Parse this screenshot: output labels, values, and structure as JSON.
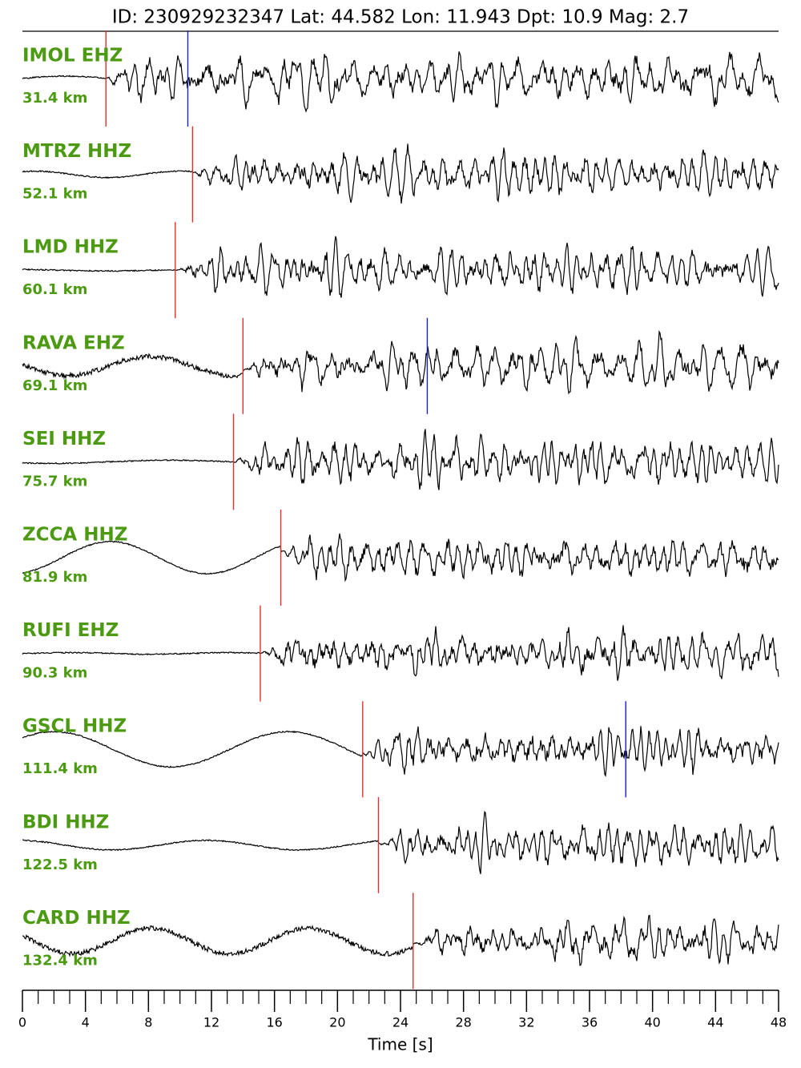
{
  "chart_data": {
    "type": "seismogram",
    "title": "ID: 230929232347 Lat:  44.582 Lon:  11.943 Dpt:    10.9 Mag:   2.7",
    "xlabel": "Time [s]",
    "xlim": [
      0,
      48
    ],
    "xticks": [
      0,
      4,
      8,
      12,
      16,
      20,
      24,
      28,
      32,
      36,
      40,
      44,
      48
    ],
    "label_color": "#4c9a12",
    "stations": [
      {
        "name": "IMOL EHZ",
        "distance": "31.4 km",
        "picks": [
          {
            "time": 5.3,
            "color": "#e03030"
          },
          {
            "time": 10.5,
            "color": "#2020c0"
          }
        ]
      },
      {
        "name": "MTRZ HHZ",
        "distance": "52.1 km",
        "picks": [
          {
            "time": 10.8,
            "color": "#e03030"
          }
        ]
      },
      {
        "name": "LMD HHZ",
        "distance": "60.1 km",
        "picks": [
          {
            "time": 9.7,
            "color": "#e03030"
          }
        ]
      },
      {
        "name": "RAVA EHZ",
        "distance": "69.1 km",
        "picks": [
          {
            "time": 14.0,
            "color": "#e03030"
          },
          {
            "time": 25.7,
            "color": "#2020c0"
          }
        ]
      },
      {
        "name": "SEI HHZ",
        "distance": "75.7 km",
        "picks": [
          {
            "time": 13.4,
            "color": "#e03030"
          }
        ]
      },
      {
        "name": "ZCCA HHZ",
        "distance": "81.9 km",
        "picks": [
          {
            "time": 16.4,
            "color": "#e03030"
          }
        ]
      },
      {
        "name": "RUFI EHZ",
        "distance": "90.3 km",
        "picks": [
          {
            "time": 15.1,
            "color": "#e03030"
          }
        ]
      },
      {
        "name": "GSCL HHZ",
        "distance": "111.4 km",
        "picks": [
          {
            "time": 21.6,
            "color": "#e03030"
          },
          {
            "time": 38.3,
            "color": "#2020c0"
          }
        ]
      },
      {
        "name": "BDI HHZ",
        "distance": "122.5 km",
        "picks": [
          {
            "time": 22.6,
            "color": "#e03030"
          }
        ]
      },
      {
        "name": "CARD HHZ",
        "distance": "132.4 km",
        "picks": [
          {
            "time": 24.8,
            "color": "#e03030"
          }
        ]
      }
    ]
  }
}
